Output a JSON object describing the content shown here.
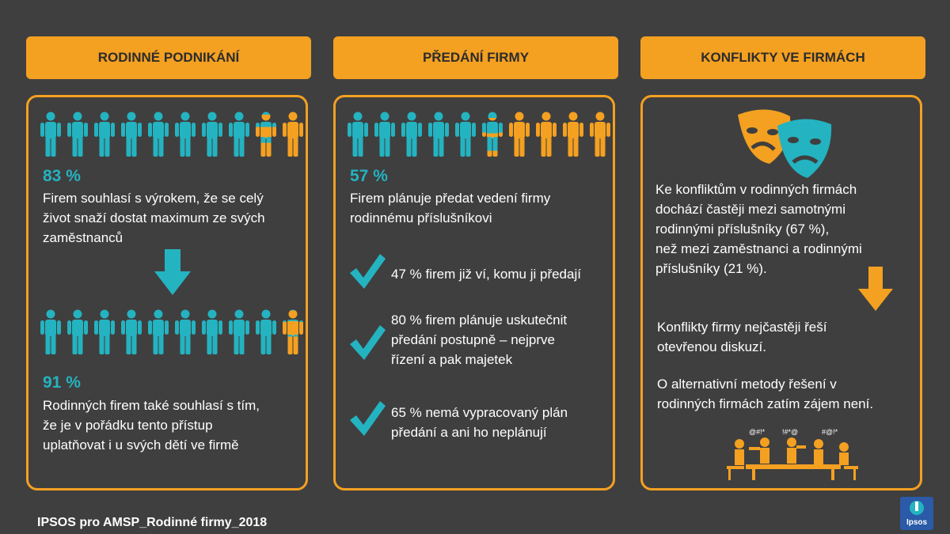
{
  "headers": [
    "RODINNÉ PODNIKÁNÍ",
    "PŘEDÁNÍ FIRMY",
    "KONFLIKTY VE FIRMÁCH"
  ],
  "colors": {
    "teal": "#24b3c0",
    "orange": "#f4a021",
    "background": "#3f3f3f"
  },
  "panel1": {
    "stat1": {
      "value": "83 %",
      "text": [
        "Firem souhlasí s výrokem, že se celý",
        "život snaží dostat maximum ze svých",
        "zaměstnanců"
      ]
    },
    "stat2": {
      "value": "91 %",
      "text": [
        "Rodinných firem také souhlasí s tím,",
        "že je v pořádku tento přístup",
        "uplatňovat i u svých  dětí ve firmě"
      ]
    },
    "people_row1_teal_fraction": 0.83,
    "people_row2_teal_fraction": 0.91,
    "arrow_icon": "arrow-down-icon"
  },
  "panel2": {
    "stat": {
      "value": "57 %",
      "text": [
        "Firem plánuje předat vedení firmy",
        "rodinnému příslušníkovi"
      ]
    },
    "people_teal_fraction": 0.57,
    "checks": [
      {
        "text": [
          "47 % firem již ví, komu ji předají"
        ]
      },
      {
        "text": [
          "80 % firem plánuje uskutečnit",
          "předání postupně – nejprve",
          "řízení a pak majetek"
        ]
      },
      {
        "text": [
          "65 % nemá vypracovaný plán",
          "předání a ani ho neplánují"
        ]
      }
    ],
    "check_icon": "checkmark-icon"
  },
  "panel3": {
    "text1": [
      "Ke konfliktům v rodinných firmách",
      "dochází častěji mezi samotnými",
      "rodinnými příslušníky (67 %),",
      "než mezi zaměstnanci a rodinnými",
      "příslušníky (21 %)."
    ],
    "text2": [
      "Konflikty firmy nejčastěji řeší",
      "otevřenou diskuzí."
    ],
    "text3": [
      "O alternativní metody řešení v",
      "rodinných firmách zatím zájem není."
    ],
    "swear_bubbles": [
      "@#!*",
      "!#*@",
      "#@!*"
    ],
    "icons": [
      "theater-masks-icon",
      "arrow-down-icon",
      "arguing-people-icon"
    ]
  },
  "footer": "IPSOS pro AMSP_Rodinné firmy_2018",
  "logo": {
    "text": "Ipsos"
  }
}
